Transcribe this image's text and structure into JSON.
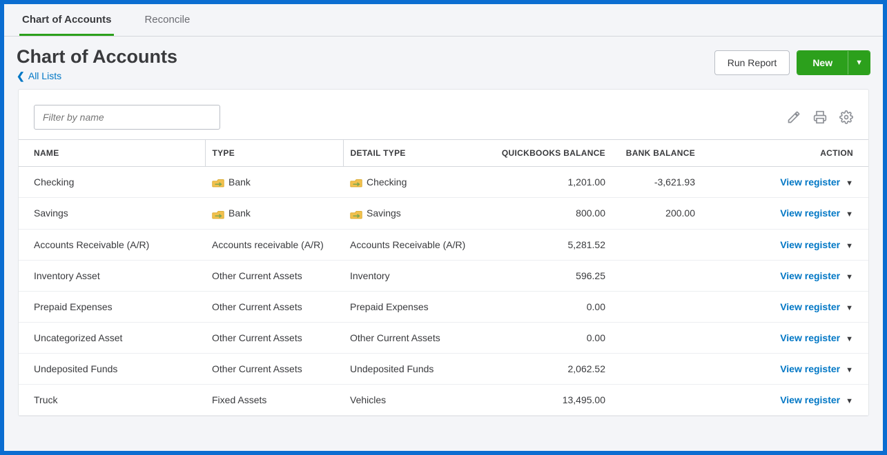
{
  "tabs": {
    "chart_of_accounts": "Chart of Accounts",
    "reconcile": "Reconcile"
  },
  "header": {
    "title": "Chart of Accounts",
    "breadcrumb_label": "All Lists",
    "run_report": "Run Report",
    "new_button": "New"
  },
  "filter": {
    "placeholder": "Filter by name"
  },
  "columns": {
    "name": "NAME",
    "type": "TYPE",
    "detail_type": "DETAIL TYPE",
    "qb_balance": "QUICKBOOKS BALANCE",
    "bank_balance": "BANK BALANCE",
    "action": "ACTION"
  },
  "action_label": "View register",
  "rows": [
    {
      "name": "Checking",
      "type": "Bank",
      "type_icon": true,
      "detail": "Checking",
      "detail_icon": true,
      "qb": "1,201.00",
      "bank": "-3,621.93"
    },
    {
      "name": "Savings",
      "type": "Bank",
      "type_icon": true,
      "detail": "Savings",
      "detail_icon": true,
      "qb": "800.00",
      "bank": "200.00"
    },
    {
      "name": "Accounts Receivable (A/R)",
      "type": "Accounts receivable (A/R)",
      "type_icon": false,
      "detail": "Accounts Receivable (A/R)",
      "detail_icon": false,
      "qb": "5,281.52",
      "bank": ""
    },
    {
      "name": "Inventory Asset",
      "type": "Other Current Assets",
      "type_icon": false,
      "detail": "Inventory",
      "detail_icon": false,
      "qb": "596.25",
      "bank": ""
    },
    {
      "name": "Prepaid Expenses",
      "type": "Other Current Assets",
      "type_icon": false,
      "detail": "Prepaid Expenses",
      "detail_icon": false,
      "qb": "0.00",
      "bank": ""
    },
    {
      "name": "Uncategorized Asset",
      "type": "Other Current Assets",
      "type_icon": false,
      "detail": "Other Current Assets",
      "detail_icon": false,
      "qb": "0.00",
      "bank": ""
    },
    {
      "name": "Undeposited Funds",
      "type": "Other Current Assets",
      "type_icon": false,
      "detail": "Undeposited Funds",
      "detail_icon": false,
      "qb": "2,062.52",
      "bank": ""
    },
    {
      "name": "Truck",
      "type": "Fixed Assets",
      "type_icon": false,
      "detail": "Vehicles",
      "detail_icon": false,
      "qb": "13,495.00",
      "bank": ""
    }
  ],
  "colors": {
    "accent_green": "#2ca01c",
    "link_blue": "#0077c5"
  }
}
